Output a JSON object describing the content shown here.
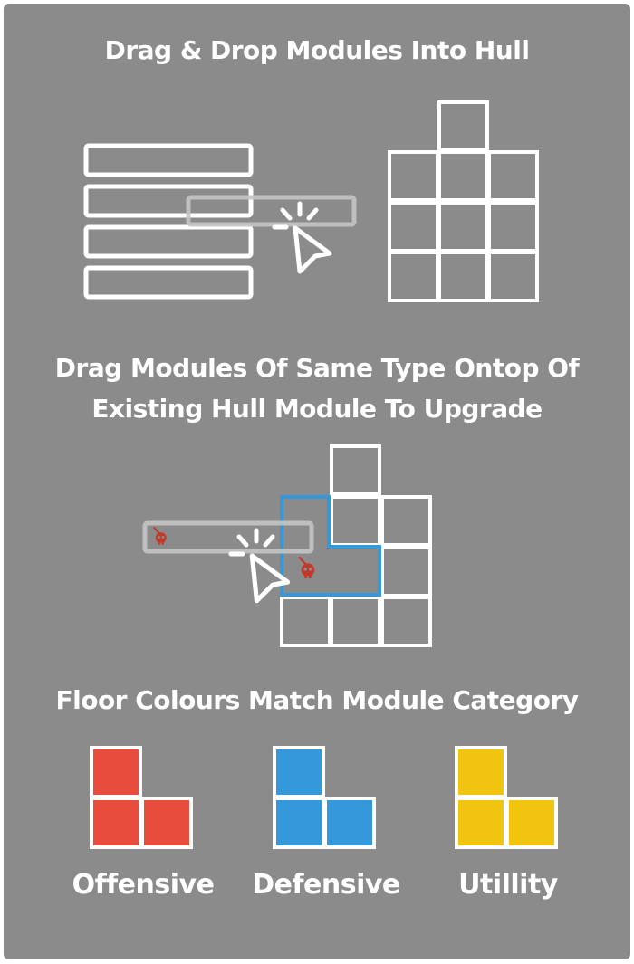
{
  "tutorial": {
    "drag_drop_title": "Drag & Drop Modules Into Hull",
    "upgrade_title_line1": "Drag Modules Of Same Type Ontop Of",
    "upgrade_title_line2": "Existing Hull Module To Upgrade",
    "colours_title": "Floor Colours Match Module Category"
  },
  "categories": [
    {
      "label": "Offensive",
      "color": "#e74c3c"
    },
    {
      "label": "Defensive",
      "color": "#3498db"
    },
    {
      "label": "Utillity",
      "color": "#f1c40f"
    }
  ],
  "icons": {
    "pointer": "cursor-arrow-icon",
    "module": "skull-sword-icon"
  }
}
